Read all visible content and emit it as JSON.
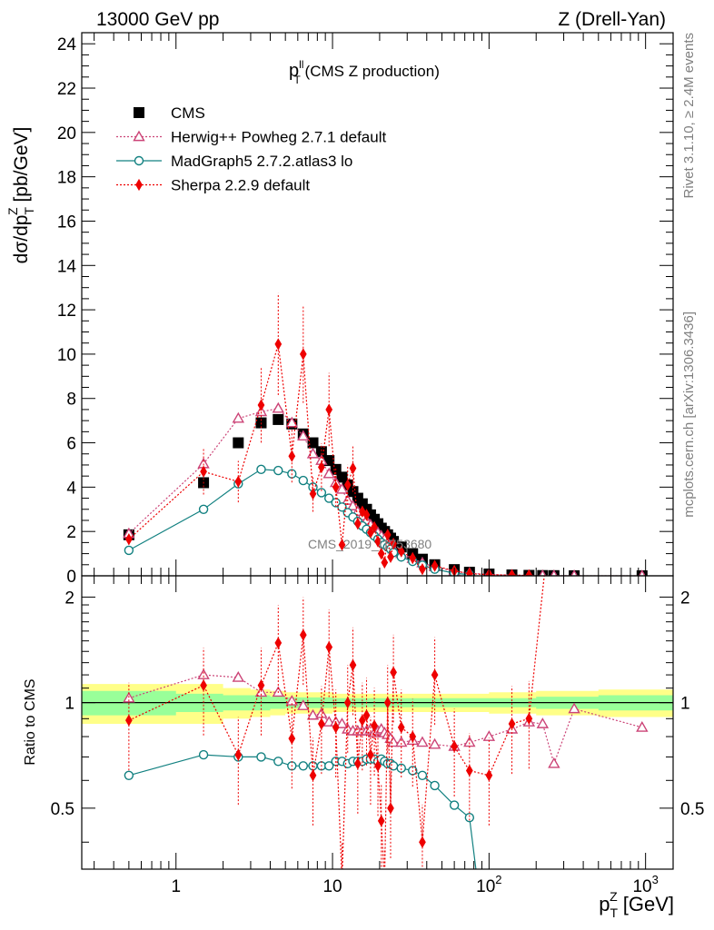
{
  "header": {
    "left": "13000 GeV pp",
    "right": "Z (Drell-Yan)"
  },
  "side": {
    "rivet": "Rivet 3.1.10, ≥ 2.4M events",
    "mcplots": "mcplots.cern.ch [arXiv:1306.3436]"
  },
  "watermark": "CMS_2019_I1753680",
  "colors": {
    "data": "#000000",
    "herwig": "#cc4477",
    "madgraph": "#118080",
    "sherpa": "#ee0000",
    "band_inner": "#99ff99",
    "band_outer": "#ffff88"
  },
  "chart_data": [
    {
      "type": "scatter",
      "panel": "main",
      "title": "p_T^ll (CMS Z production)",
      "title_main": "p",
      "title_sup": "ll",
      "title_sub": "T",
      "title_rest": " (CMS Z production)",
      "ylabel": "dσ/dp_T^Z [pb/GeV]",
      "xlabel": "p_T^Z [GeV]",
      "xscale": "log",
      "xlim": [
        0.25,
        1500
      ],
      "ylim": [
        0,
        24.5
      ],
      "yticks": [
        0,
        2,
        4,
        6,
        8,
        10,
        12,
        14,
        16,
        18,
        20,
        22,
        24
      ],
      "xticks": [
        {
          "v": 1,
          "base": "1",
          "exp": ""
        },
        {
          "v": 10,
          "base": "10",
          "exp": ""
        },
        {
          "v": 100,
          "base": "10",
          "exp": "2"
        },
        {
          "v": 1000,
          "base": "10",
          "exp": "3"
        }
      ],
      "legend_position": "top-left",
      "series": [
        {
          "name": "CMS",
          "key": "cms",
          "marker": "square",
          "x": [
            0.5,
            1.5,
            2.5,
            3.5,
            4.5,
            5.5,
            6.5,
            7.5,
            8.5,
            9.5,
            10.5,
            11.5,
            12.5,
            13.5,
            14.5,
            15.5,
            16.5,
            17.5,
            18.5,
            19.5,
            20.5,
            21.5,
            22.5,
            23.5,
            24.5,
            27.5,
            32.5,
            37.5,
            45,
            60,
            75,
            100,
            140,
            180,
            220,
            260,
            350,
            950
          ],
          "y": [
            1.85,
            4.2,
            6.0,
            6.9,
            7.05,
            6.85,
            6.4,
            6.0,
            5.6,
            5.2,
            4.8,
            4.45,
            4.1,
            3.8,
            3.5,
            3.25,
            3.0,
            2.75,
            2.55,
            2.35,
            2.15,
            2.0,
            1.85,
            1.7,
            1.55,
            1.3,
            1.0,
            0.75,
            0.5,
            0.28,
            0.16,
            0.08,
            0.04,
            0.02,
            0.012,
            0.008,
            0.004,
            0.001
          ]
        },
        {
          "name": "Herwig++ Powheg 2.7.1 default",
          "key": "herwig",
          "marker": "triangle-open",
          "x": [
            0.5,
            1.5,
            2.5,
            3.5,
            4.5,
            5.5,
            6.5,
            7.5,
            8.5,
            9.5,
            10.5,
            11.5,
            12.5,
            13.5,
            14.5,
            15.5,
            16.5,
            17.5,
            18.5,
            19.5,
            20.5,
            21.5,
            22.5,
            23.5,
            24.5,
            27.5,
            32.5,
            37.5,
            45,
            60,
            75,
            100,
            140,
            180,
            220,
            260,
            350,
            950
          ],
          "y": [
            1.9,
            5.05,
            7.1,
            7.4,
            7.55,
            6.9,
            6.3,
            5.5,
            5.2,
            4.6,
            4.2,
            3.9,
            3.4,
            3.15,
            2.9,
            2.7,
            2.5,
            2.3,
            2.1,
            1.95,
            1.8,
            1.65,
            1.5,
            1.35,
            1.2,
            1.0,
            0.78,
            0.58,
            0.4,
            0.21,
            0.12,
            0.06,
            0.03,
            0.015,
            0.008,
            0.005,
            0.003,
            0.001
          ]
        },
        {
          "name": "MadGraph5 2.7.2.atlas3 lo",
          "key": "madgraph",
          "marker": "circle-open",
          "x": [
            0.5,
            1.5,
            2.5,
            3.5,
            4.5,
            5.5,
            6.5,
            7.5,
            8.5,
            9.5,
            10.5,
            11.5,
            12.5,
            13.5,
            14.5,
            15.5,
            16.5,
            17.5,
            18.5,
            19.5,
            20.5,
            21.5,
            22.5,
            23.5,
            24.5,
            27.5,
            32.5,
            37.5,
            45,
            60,
            75
          ],
          "y": [
            1.15,
            3.0,
            4.15,
            4.8,
            4.75,
            4.6,
            4.3,
            4.0,
            3.75,
            3.5,
            3.3,
            3.1,
            2.85,
            2.65,
            2.45,
            2.25,
            2.1,
            1.95,
            1.8,
            1.65,
            1.5,
            1.4,
            1.3,
            1.2,
            1.05,
            0.85,
            0.65,
            0.48,
            0.3,
            0.12,
            0.05
          ]
        },
        {
          "name": "Sherpa 2.2.9 default",
          "key": "sherpa",
          "marker": "diamond",
          "x": [
            0.5,
            1.5,
            2.5,
            3.5,
            4.5,
            5.5,
            6.5,
            7.5,
            8.5,
            9.5,
            10.5,
            11.5,
            12.5,
            13.5,
            14.5,
            15.5,
            16.5,
            17.5,
            18.5,
            19.5,
            20.5,
            21.5,
            22.5,
            23.5,
            24.5,
            27.5,
            32.5,
            37.5,
            45,
            60,
            75,
            100,
            140,
            180
          ],
          "y": [
            1.65,
            4.7,
            4.25,
            7.7,
            10.45,
            5.4,
            10.0,
            3.7,
            4.9,
            7.5,
            4.0,
            1.4,
            4.1,
            4.85,
            2.35,
            2.9,
            2.75,
            1.95,
            2.2,
            1.55,
            1.0,
            0.6,
            1.85,
            0.85,
            1.45,
            1.1,
            0.8,
            0.3,
            0.45,
            0.22,
            0.1,
            0.05,
            0.03,
            0.02
          ]
        }
      ],
      "legend": [
        {
          "label": "CMS",
          "key": "cms"
        },
        {
          "label": "Herwig++ Powheg 2.7.1 default",
          "key": "herwig"
        },
        {
          "label": "MadGraph5 2.7.2.atlas3 lo",
          "key": "madgraph"
        },
        {
          "label": "Sherpa 2.2.9 default",
          "key": "sherpa"
        }
      ]
    },
    {
      "type": "scatter",
      "panel": "ratio",
      "ylabel": "Ratio to CMS",
      "xscale": "log",
      "xlim": [
        0.25,
        1500
      ],
      "ylim": [
        0.335,
        2.3
      ],
      "yticks_labeled": [
        0.5,
        1,
        2
      ],
      "series": [
        {
          "name": "Herwig++ Powheg 2.7.1 default",
          "key": "herwig",
          "x": [
            0.5,
            1.5,
            2.5,
            3.5,
            4.5,
            5.5,
            6.5,
            7.5,
            8.5,
            9.5,
            10.5,
            11.5,
            12.5,
            13.5,
            14.5,
            15.5,
            16.5,
            17.5,
            18.5,
            19.5,
            20.5,
            21.5,
            22.5,
            23.5,
            24.5,
            27.5,
            32.5,
            37.5,
            45,
            60,
            75,
            100,
            140,
            180,
            220,
            260,
            350,
            950
          ],
          "y": [
            1.03,
            1.2,
            1.18,
            1.07,
            1.07,
            1.01,
            0.98,
            0.92,
            0.93,
            0.88,
            0.88,
            0.87,
            0.84,
            0.83,
            0.83,
            0.83,
            0.83,
            0.84,
            0.82,
            0.83,
            0.84,
            0.82,
            0.81,
            0.79,
            0.77,
            0.77,
            0.78,
            0.77,
            0.76,
            0.75,
            0.77,
            0.8,
            0.84,
            0.88,
            0.87,
            0.67,
            0.96,
            0.85
          ]
        },
        {
          "name": "MadGraph5 2.7.2.atlas3 lo",
          "key": "madgraph",
          "x": [
            0.5,
            1.5,
            2.5,
            3.5,
            4.5,
            5.5,
            6.5,
            7.5,
            8.5,
            9.5,
            10.5,
            11.5,
            12.5,
            13.5,
            14.5,
            15.5,
            16.5,
            17.5,
            18.5,
            19.5,
            20.5,
            21.5,
            22.5,
            23.5,
            24.5,
            27.5,
            32.5,
            37.5,
            45,
            60,
            75
          ],
          "y": [
            0.62,
            0.71,
            0.7,
            0.7,
            0.68,
            0.66,
            0.66,
            0.66,
            0.66,
            0.66,
            0.68,
            0.68,
            0.67,
            0.68,
            0.68,
            0.68,
            0.69,
            0.69,
            0.69,
            0.68,
            0.69,
            0.68,
            0.67,
            0.67,
            0.66,
            0.65,
            0.64,
            0.62,
            0.58,
            0.51,
            0.47
          ]
        },
        {
          "name": "Sherpa 2.2.9 default",
          "key": "sherpa",
          "x": [
            0.5,
            1.5,
            2.5,
            3.5,
            4.5,
            5.5,
            6.5,
            7.5,
            8.5,
            9.5,
            10.5,
            11.5,
            12.5,
            13.5,
            14.5,
            15.5,
            16.5,
            17.5,
            18.5,
            19.5,
            20.5,
            21.5,
            22.5,
            23.5,
            24.5,
            27.5,
            32.5,
            37.5,
            45,
            60,
            75,
            100,
            140,
            180
          ],
          "y": [
            0.89,
            1.12,
            0.71,
            1.12,
            1.48,
            0.79,
            1.56,
            0.62,
            0.87,
            1.44,
            0.85,
            0.31,
            1.0,
            1.28,
            0.67,
            0.89,
            0.92,
            0.71,
            0.86,
            0.66,
            0.46,
            0.3,
            1.0,
            0.5,
            1.22,
            0.85,
            0.8,
            0.4,
            1.2,
            0.75,
            0.64,
            0.62,
            0.87,
            0.9
          ]
        }
      ]
    }
  ]
}
